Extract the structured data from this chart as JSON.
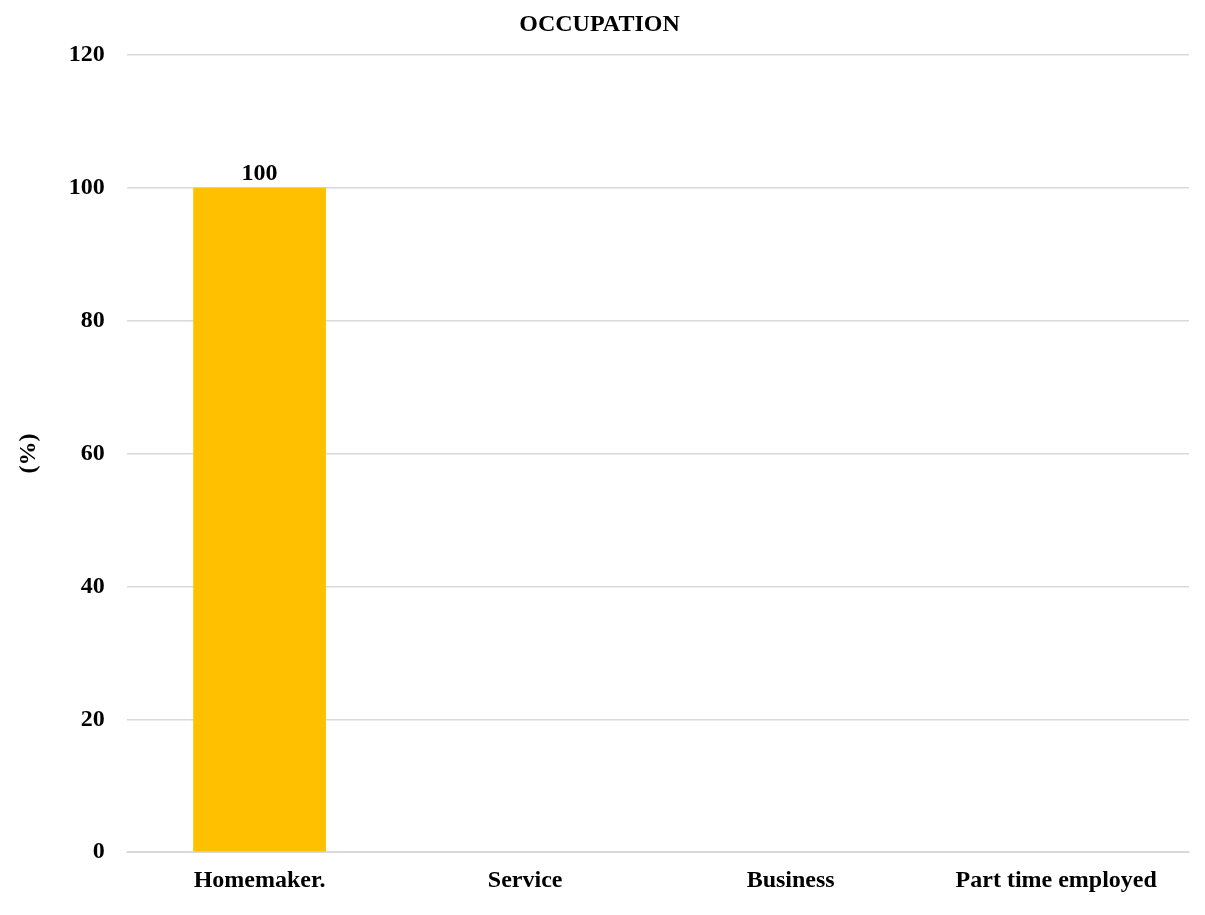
{
  "chart_data": {
    "type": "bar",
    "title": "OCCUPATION",
    "ylabel": "(%)",
    "categories": [
      "Homemaker.",
      "Service",
      "Business",
      "Part time employed"
    ],
    "values": [
      100,
      0,
      0,
      0
    ],
    "color": "#ffc000",
    "value_labels": [
      "100",
      null,
      null,
      null
    ],
    "ylim": [
      0,
      120
    ],
    "yticks": [
      0,
      20,
      40,
      60,
      80,
      100,
      120
    ],
    "grid": "y",
    "legend": false
  }
}
